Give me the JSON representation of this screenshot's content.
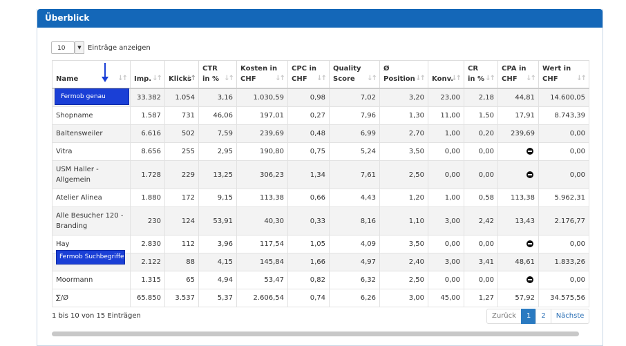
{
  "panel": {
    "title": "Überblick"
  },
  "length_menu": {
    "value": "10",
    "label": "Einträge anzeigen"
  },
  "columns": [
    [
      "Name"
    ],
    [
      "Imp."
    ],
    [
      "Klicks"
    ],
    [
      "CTR",
      "in %"
    ],
    [
      "Kosten in",
      "CHF"
    ],
    [
      "CPC in",
      "CHF"
    ],
    [
      "Quality",
      "Score"
    ],
    [
      "Ø",
      "Position"
    ],
    [
      "Konv."
    ],
    [
      "CR",
      "in %"
    ],
    [
      "CPA in",
      "CHF"
    ],
    [
      "Wert in",
      "CHF"
    ]
  ],
  "rows": [
    [
      "",
      "33.382",
      "1.054",
      "3,16",
      "1.030,59",
      "0,98",
      "7,02",
      "3,20",
      "23,00",
      "2,18",
      "44,81",
      "14.600,05"
    ],
    [
      "Shopname",
      "1.587",
      "731",
      "46,06",
      "197,01",
      "0,27",
      "7,96",
      "1,30",
      "11,00",
      "1,50",
      "17,91",
      "8.743,39"
    ],
    [
      "Baltensweiler",
      "6.616",
      "502",
      "7,59",
      "239,69",
      "0,48",
      "6,99",
      "2,70",
      "1,00",
      "0,20",
      "239,69",
      "0,00"
    ],
    [
      "Vitra",
      "8.656",
      "255",
      "2,95",
      "190,80",
      "0,75",
      "5,24",
      "3,50",
      "0,00",
      "0,00",
      "",
      "0,00"
    ],
    [
      "USM Haller - Allgemein",
      "1.728",
      "229",
      "13,25",
      "306,23",
      "1,34",
      "7,61",
      "2,50",
      "0,00",
      "0,00",
      "",
      "0,00"
    ],
    [
      "Atelier Alinea",
      "1.880",
      "172",
      "9,15",
      "113,38",
      "0,66",
      "4,43",
      "1,20",
      "1,00",
      "0,58",
      "113,38",
      "5.962,31"
    ],
    [
      "Alle Besucher 120 - Branding",
      "230",
      "124",
      "53,91",
      "40,30",
      "0,33",
      "8,16",
      "1,10",
      "3,00",
      "2,42",
      "13,43",
      "2.176,77"
    ],
    [
      "Hay",
      "2.830",
      "112",
      "3,96",
      "117,54",
      "1,05",
      "4,09",
      "3,50",
      "0,00",
      "0,00",
      "",
      "0,00"
    ],
    [
      "",
      "2.122",
      "88",
      "4,15",
      "145,84",
      "1,66",
      "4,97",
      "2,40",
      "3,00",
      "3,41",
      "48,61",
      "1.833,26"
    ],
    [
      "Moormann",
      "1.315",
      "65",
      "4,94",
      "53,47",
      "0,82",
      "6,32",
      "2,50",
      "0,00",
      "0,00",
      "",
      "0,00"
    ]
  ],
  "blocked_cpa_rows": [
    3,
    4,
    7,
    9
  ],
  "blocked_icon": "no-entry-icon",
  "totals": [
    "∑/Ø",
    "65.850",
    "3.537",
    "5,37",
    "2.606,54",
    "0,74",
    "6,26",
    "3,00",
    "45,00",
    "1,27",
    "57,92",
    "34.575,56"
  ],
  "info": "1 bis 10 von 15 Einträgen",
  "pager": {
    "prev": "Zurück",
    "pages": [
      "1",
      "2"
    ],
    "current": "1",
    "next": "Nächste"
  },
  "callouts": {
    "first": "Fermob genau",
    "second": "Fermob Suchbegriffe"
  },
  "colors": {
    "header": "#1467b8",
    "callout": "#1a3fd6",
    "active_page": "#2a7ac1"
  }
}
